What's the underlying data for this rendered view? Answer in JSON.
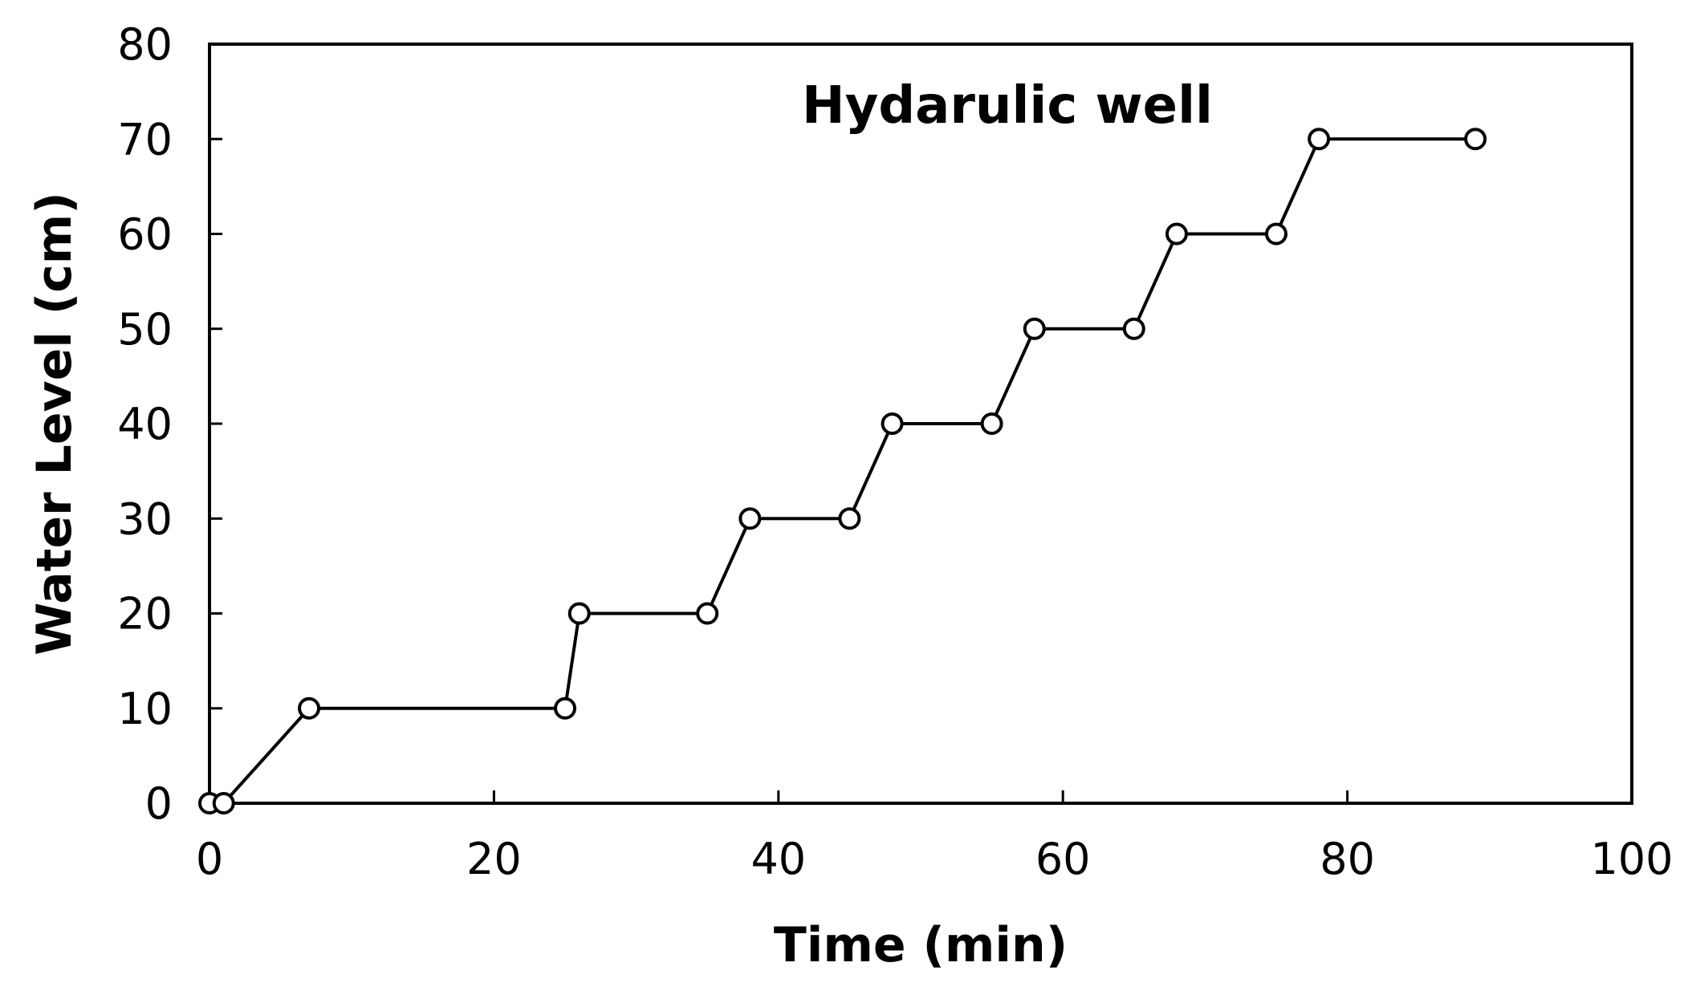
{
  "chart_data": {
    "type": "line",
    "title": "Hydarulic well",
    "xlabel": "Time (min)",
    "ylabel": "Water Level (cm)",
    "xlim": [
      0,
      100
    ],
    "ylim": [
      0,
      80
    ],
    "xticks": [
      0,
      20,
      40,
      60,
      80,
      100
    ],
    "yticks": [
      0,
      10,
      20,
      30,
      40,
      50,
      60,
      70,
      80
    ],
    "xtick_labels": [
      "0",
      "20",
      "40",
      "60",
      "80",
      "100"
    ],
    "ytick_labels": [
      "0",
      "10",
      "20",
      "30",
      "40",
      "50",
      "60",
      "70",
      "80"
    ],
    "grid": false,
    "legend": false,
    "series": [
      {
        "marker": "open-circle",
        "color": "#000000",
        "x": [
          0,
          1,
          7,
          25,
          26,
          35,
          38,
          45,
          48,
          55,
          58,
          65,
          68,
          75,
          78,
          89
        ],
        "y": [
          0,
          0,
          10,
          10,
          20,
          20,
          30,
          30,
          40,
          40,
          50,
          50,
          60,
          60,
          70,
          70
        ]
      }
    ]
  }
}
